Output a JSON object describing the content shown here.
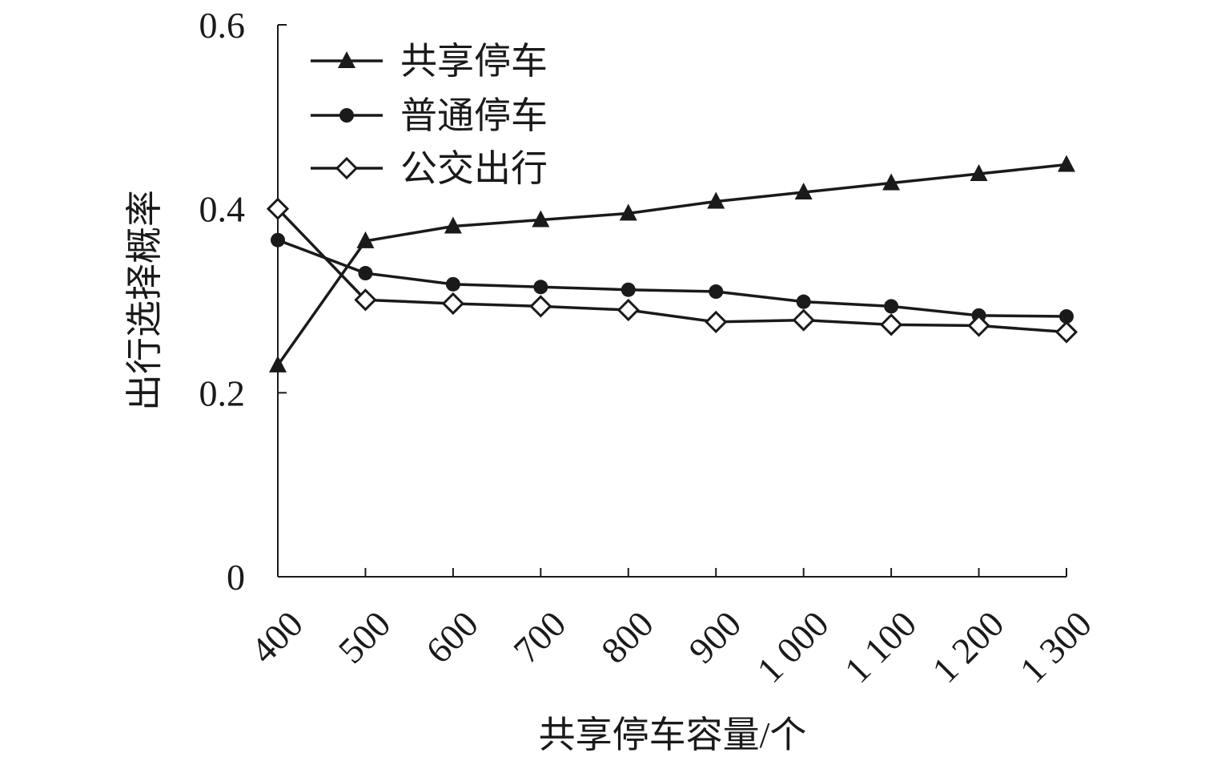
{
  "chart_data": {
    "type": "line",
    "xlabel": "共享停车容量/个",
    "ylabel": "出行选择概率",
    "x": [
      400,
      500,
      600,
      700,
      800,
      900,
      1000,
      1100,
      1200,
      1300
    ],
    "x_tick_labels": [
      "400",
      "500",
      "600",
      "700",
      "800",
      "900",
      "1 000",
      "1 100",
      "1 200",
      "1 300"
    ],
    "y_ticks": [
      0,
      0.2,
      0.4,
      0.6
    ],
    "y_tick_labels": [
      "0",
      "0.2",
      "0.4",
      "0.6"
    ],
    "ylim": [
      0,
      0.6
    ],
    "grid": false,
    "legend_position": "top-left",
    "series": [
      {
        "name": "共享停车",
        "marker": "triangle",
        "values": [
          0.23,
          0.365,
          0.381,
          0.388,
          0.395,
          0.408,
          0.418,
          0.428,
          0.438,
          0.448
        ]
      },
      {
        "name": "普通停车",
        "marker": "circle",
        "values": [
          0.366,
          0.33,
          0.318,
          0.315,
          0.312,
          0.31,
          0.299,
          0.294,
          0.284,
          0.283
        ]
      },
      {
        "name": "公交出行",
        "marker": "diamond",
        "values": [
          0.4,
          0.301,
          0.297,
          0.294,
          0.29,
          0.277,
          0.279,
          0.274,
          0.273,
          0.266
        ]
      }
    ]
  }
}
